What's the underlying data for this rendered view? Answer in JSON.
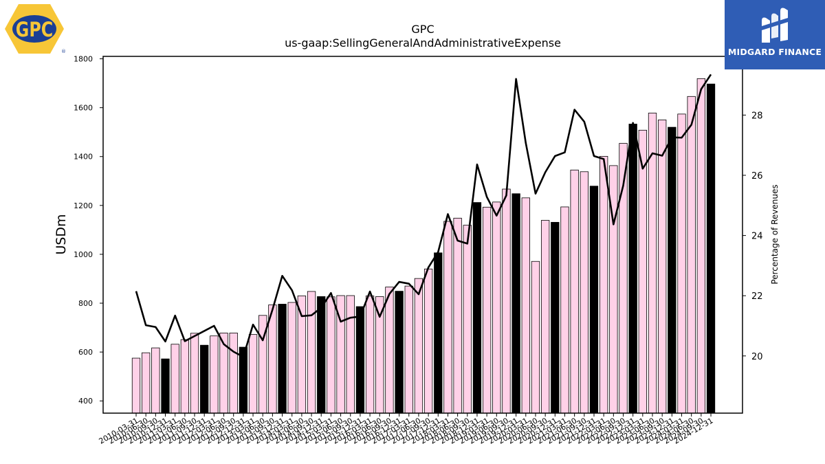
{
  "branding": {
    "company_logo_text": "GPC",
    "registered_mark": "®",
    "publisher_name": "MIDGARD FINANCE",
    "publisher_color": "#2f5db5"
  },
  "chart_data": {
    "type": "bar",
    "title": "GPC",
    "subtitle": "us-gaap:SellingGeneralAndAdministrativeExpense",
    "ylabel": "USDm",
    "y2label": "Percentage of Revenues",
    "ylim": [
      350,
      1810
    ],
    "y2lim": [
      18.1,
      29.95
    ],
    "yticks": [
      400,
      600,
      800,
      1000,
      1200,
      1400,
      1600,
      1800
    ],
    "y2ticks": [
      20,
      22,
      24,
      26,
      28
    ],
    "colors": {
      "quarter_bar": "#ffd1e8",
      "year_end_bar": "#000000",
      "line": "#000000"
    },
    "categories": [
      "2010-03-31",
      "2010-06-30",
      "2010-09-30",
      "2010-12-31",
      "2011-03-31",
      "2011-06-30",
      "2011-09-30",
      "2011-12-31",
      "2012-03-31",
      "2012-06-30",
      "2012-09-30",
      "2012-12-31",
      "2013-03-31",
      "2013-06-30",
      "2013-09-30",
      "2013-12-31",
      "2014-03-31",
      "2014-06-30",
      "2014-09-30",
      "2014-12-31",
      "2015-03-31",
      "2015-06-30",
      "2015-09-30",
      "2015-12-31",
      "2016-03-31",
      "2016-06-30",
      "2016-09-30",
      "2016-12-31",
      "2017-03-31",
      "2017-06-30",
      "2017-09-30",
      "2017-12-31",
      "2018-03-31",
      "2018-06-30",
      "2018-09-30",
      "2018-12-31",
      "2019-03-31",
      "2019-06-30",
      "2019-09-30",
      "2019-12-31",
      "2020-03-31",
      "2020-06-30",
      "2020-09-30",
      "2020-12-31",
      "2021-03-31",
      "2021-06-30",
      "2021-09-30",
      "2021-12-31",
      "2022-03-31",
      "2022-06-30",
      "2022-09-30",
      "2022-12-31",
      "2023-03-31",
      "2023-06-30",
      "2023-09-30",
      "2023-12-31",
      "2024-03-31",
      "2024-06-30",
      "2024-09-30",
      "2024-12-31"
    ],
    "series": [
      {
        "type": "bar",
        "values": [
          575,
          597,
          617,
          572,
          632,
          651,
          677,
          628,
          666,
          678,
          678,
          620,
          672,
          750,
          793,
          796,
          803,
          830,
          848,
          827,
          826,
          831,
          831,
          786,
          830,
          827,
          866,
          849,
          870,
          901,
          940,
          1006,
          1135,
          1148,
          1119,
          1212,
          1193,
          1214,
          1267,
          1248,
          1231,
          971,
          1139,
          1131,
          1194,
          1345,
          1338,
          1279,
          1401,
          1363,
          1454,
          1533,
          1508,
          1578,
          1550,
          1520,
          1574,
          1646,
          1719,
          1697
        ]
      },
      {
        "type": "line",
        "axis": "right",
        "values": [
          22.15,
          21.02,
          20.96,
          20.48,
          21.34,
          20.49,
          20.66,
          20.83,
          21.0,
          20.39,
          20.14,
          19.97,
          21.04,
          20.52,
          21.54,
          22.66,
          22.18,
          21.32,
          21.35,
          21.6,
          22.09,
          21.14,
          21.27,
          21.31,
          22.14,
          21.3,
          22.06,
          22.46,
          22.4,
          22.05,
          22.94,
          23.45,
          24.71,
          23.83,
          23.73,
          26.36,
          25.28,
          24.66,
          25.33,
          29.2,
          27.07,
          25.39,
          26.1,
          26.64,
          26.76,
          28.18,
          27.78,
          26.64,
          26.54,
          24.37,
          25.66,
          27.74,
          26.22,
          26.73,
          26.65,
          27.26,
          27.25,
          27.68,
          28.86,
          29.35
        ]
      }
    ],
    "year_end_bar_rule": "bars for the December quarter are drawn black; others pink"
  }
}
